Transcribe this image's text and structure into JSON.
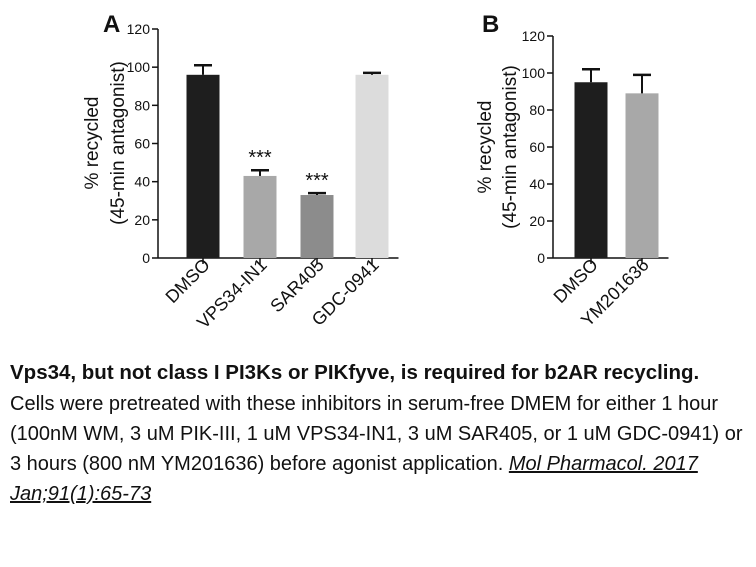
{
  "chart_data": [
    {
      "type": "bar",
      "panel_label": "A",
      "ylabel": [
        "% recycled",
        "(45-min antagonist)"
      ],
      "xlabel": "",
      "ylim": [
        0,
        120
      ],
      "yticks": [
        0,
        20,
        40,
        60,
        80,
        100,
        120
      ],
      "categories": [
        "DMSO",
        "VPS34-IN1",
        "SAR405",
        "GDC-0941"
      ],
      "values": [
        96,
        43,
        33,
        96
      ],
      "errors": [
        5,
        3,
        1,
        1
      ],
      "annotations": [
        "",
        "***",
        "***",
        ""
      ],
      "colors": [
        "#1e1e1e",
        "#a8a8a8",
        "#8c8c8c",
        "#dcdcdc"
      ]
    },
    {
      "type": "bar",
      "panel_label": "B",
      "ylabel": [
        "% recycled",
        "(45-min antagonist)"
      ],
      "xlabel": "",
      "ylim": [
        0,
        120
      ],
      "yticks": [
        0,
        20,
        40,
        60,
        80,
        100,
        120
      ],
      "categories": [
        "DMSO",
        "YM201636"
      ],
      "values": [
        95,
        89
      ],
      "errors": [
        7,
        10
      ],
      "annotations": [
        "",
        ""
      ],
      "colors": [
        "#1e1e1e",
        "#a8a8a8"
      ]
    }
  ],
  "caption": {
    "title": "Vps34, but not class I PI3Ks or PIKfyve, is required for b2AR recycling.",
    "body": "Cells were pretreated with these inhibitors in serum-free DMEM for either 1 hour (100nM WM, 3 uM PIK-III, 1 uM VPS34-IN1, 3 uM SAR405, or 1 uM GDC-0941) or 3 hours (800 nM YM201636) before agonist application. ",
    "citation": "Mol Pharmacol. 2017 Jan;91(1):65-73"
  }
}
